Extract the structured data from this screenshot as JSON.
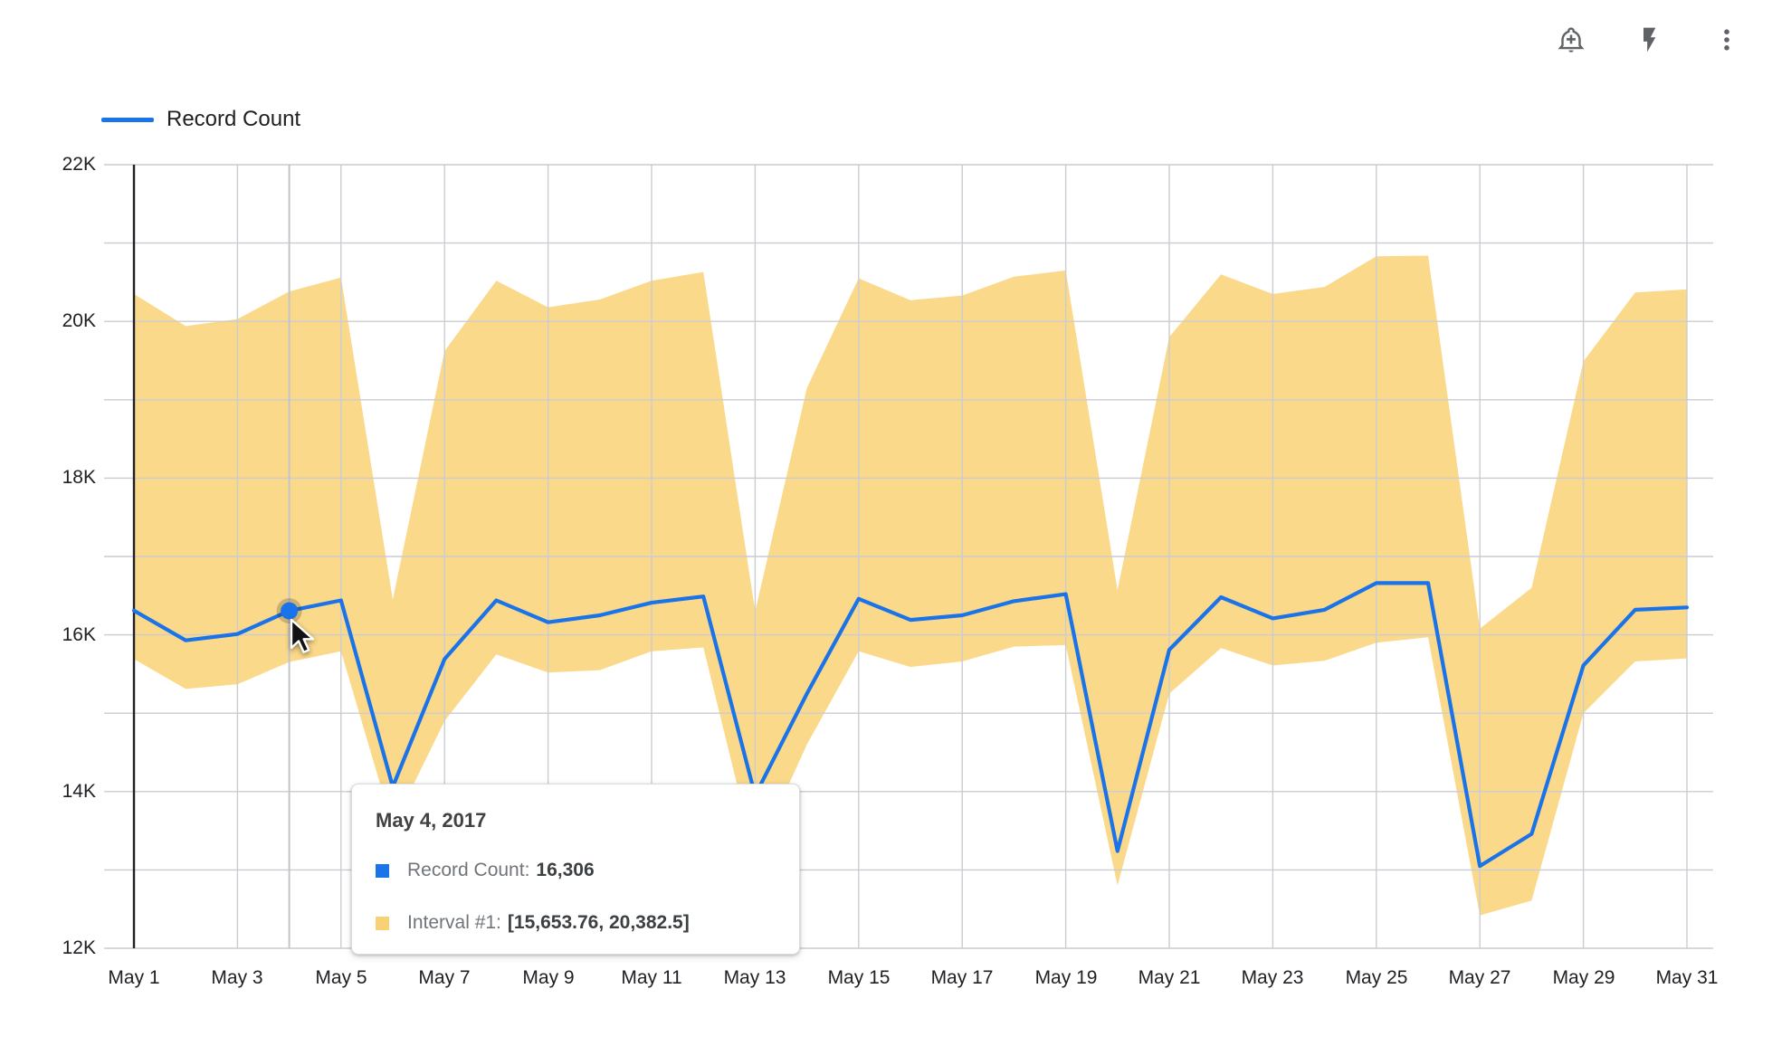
{
  "toolbar": {
    "icons": [
      {
        "name": "add-alert-icon"
      },
      {
        "name": "bolt-icon"
      },
      {
        "name": "more-vert-icon"
      }
    ]
  },
  "legend": {
    "label": "Record Count"
  },
  "colors": {
    "line": "#1a73e8",
    "band": "#fbd98a",
    "grid": "#c9ccd1",
    "axis": "#202124",
    "crosshair": "#c2c5c9",
    "icon": "#5f6368",
    "tick_text": "#202124",
    "tooltip_swatch_interval": "#f8d172",
    "tooltip_swatch_record": "#1a73e8"
  },
  "chart_data": {
    "type": "line",
    "title": "",
    "xlabel": "",
    "ylabel": "",
    "grid": true,
    "legend_position": "top-left",
    "ylim": [
      12000,
      22000
    ],
    "grid_step": 1000,
    "x": [
      "May 1",
      "May 2",
      "May 3",
      "May 4",
      "May 5",
      "May 6",
      "May 7",
      "May 8",
      "May 9",
      "May 10",
      "May 11",
      "May 12",
      "May 13",
      "May 14",
      "May 15",
      "May 16",
      "May 17",
      "May 18",
      "May 19",
      "May 20",
      "May 21",
      "May 22",
      "May 23",
      "May 24",
      "May 25",
      "May 26",
      "May 27",
      "May 28",
      "May 29",
      "May 30",
      "May 31"
    ],
    "x_tick_labels": [
      "May 1",
      "May 3",
      "May 5",
      "May 7",
      "May 9",
      "May 11",
      "May 13",
      "May 15",
      "May 17",
      "May 19",
      "May 21",
      "May 23",
      "May 25",
      "May 27",
      "May 29",
      "May 31"
    ],
    "y_ticks": [
      {
        "label": "22K",
        "value": 22000
      },
      {
        "label": "20K",
        "value": 20000
      },
      {
        "label": "18K",
        "value": 18000
      },
      {
        "label": "16K",
        "value": 16000
      },
      {
        "label": "14K",
        "value": 14000
      },
      {
        "label": "12K",
        "value": 12000
      }
    ],
    "series": [
      {
        "name": "Record Count",
        "values": [
          16310,
          15930,
          16010,
          16306,
          16440,
          14060,
          15690,
          16440,
          16160,
          16250,
          16410,
          16490,
          13950,
          15250,
          16460,
          16190,
          16250,
          16430,
          16520,
          13240,
          15810,
          16480,
          16210,
          16320,
          16660,
          16660,
          13050,
          13460,
          15610,
          16320,
          16350
        ]
      }
    ],
    "band": {
      "name": "Interval #1",
      "upper": [
        20350,
        19940,
        20030,
        20382.5,
        20560,
        16450,
        19620,
        20520,
        20180,
        20280,
        20520,
        20630,
        16300,
        19150,
        20550,
        20270,
        20330,
        20570,
        20650,
        16570,
        19800,
        20600,
        20350,
        20440,
        20830,
        20840,
        16080,
        16600,
        19490,
        20370,
        20410
      ],
      "lower": [
        15690,
        15310,
        15370,
        15653.76,
        15790,
        13550,
        14900,
        15750,
        15520,
        15550,
        15790,
        15840,
        13150,
        14600,
        15790,
        15590,
        15660,
        15850,
        15870,
        12800,
        15250,
        15830,
        15610,
        15670,
        15900,
        15970,
        12420,
        12610,
        15000,
        15660,
        15700
      ]
    },
    "highlight": {
      "index": 3,
      "x_label": "May 4",
      "value": 16306
    }
  },
  "tooltip": {
    "title": "May 4, 2017",
    "rows": [
      {
        "swatch": "#1a73e8",
        "label": "Record Count:",
        "value": "16,306"
      },
      {
        "swatch": "#f8d172",
        "label": "Interval #1:",
        "value": "[15,653.76, 20,382.5]"
      }
    ]
  }
}
